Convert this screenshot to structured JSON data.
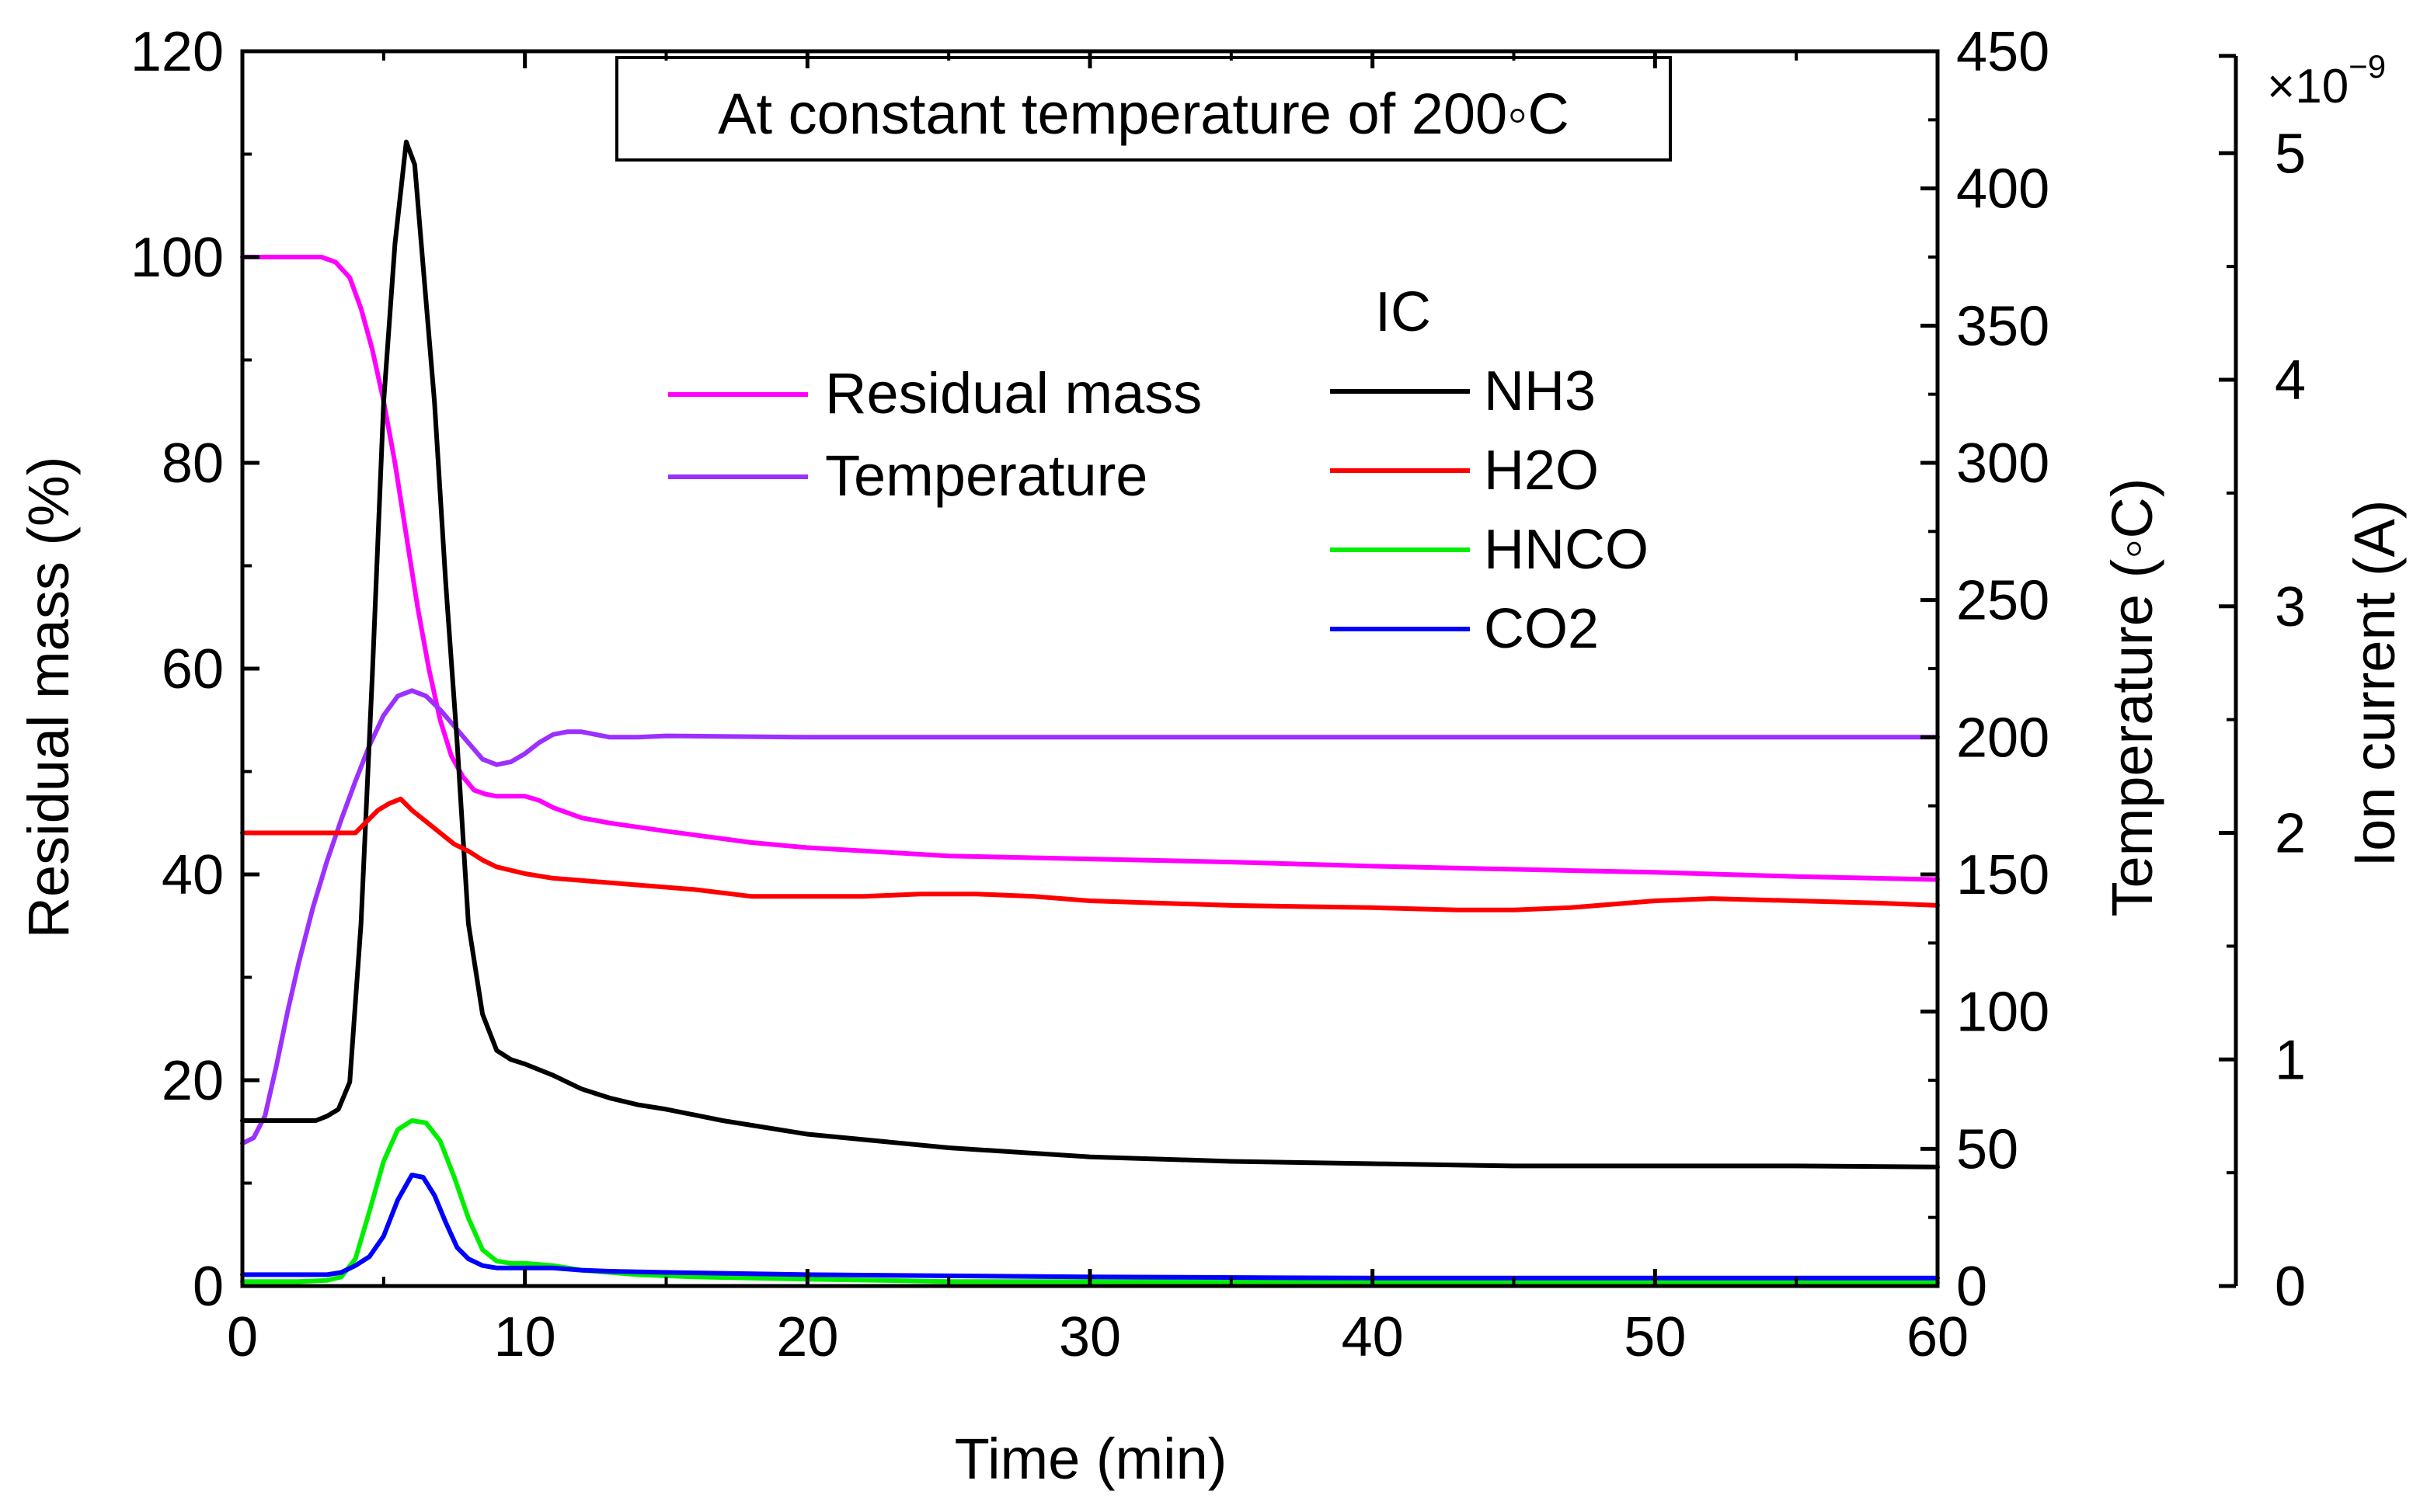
{
  "chart_data": {
    "type": "line",
    "title": "At constant temperature of 200◦C",
    "xlabel": "Time (min)",
    "xlim": [
      0,
      60
    ],
    "x_ticks": [
      0,
      10,
      20,
      30,
      40,
      50,
      60
    ],
    "axes": {
      "left": {
        "label": "Residual mass (%)",
        "lim": [
          0,
          120
        ],
        "ticks": [
          0,
          20,
          40,
          60,
          80,
          100,
          120
        ]
      },
      "right": {
        "label": "Temperature (◦C)",
        "lim": [
          0,
          450
        ],
        "ticks": [
          0,
          50,
          100,
          150,
          200,
          250,
          300,
          350,
          400,
          450
        ]
      },
      "far_right": {
        "label": "Ion current (A)",
        "lim": [
          0,
          5.45
        ],
        "ticks": [
          0,
          1,
          2,
          3,
          4,
          5
        ],
        "multiplier_base": "×10",
        "multiplier_exp": "−9"
      }
    },
    "legend": {
      "position": "top-center",
      "group_title": "IC",
      "entries": [
        "Residual mass",
        "Temperature",
        "NH3",
        "H2O",
        "HNCO",
        "CO2"
      ]
    },
    "series": [
      {
        "name": "Residual mass",
        "axis": "left",
        "color": "#ff00ff",
        "x": [
          0,
          1,
          2,
          2.8,
          3.3,
          3.8,
          4.2,
          4.6,
          5.0,
          5.4,
          5.8,
          6.2,
          6.6,
          7.0,
          7.4,
          7.8,
          8.2,
          8.6,
          9.0,
          9.5,
          10,
          10.5,
          11,
          12,
          13,
          15,
          18,
          20,
          25,
          30,
          35,
          40,
          45,
          50,
          55,
          60
        ],
        "y": [
          100,
          100,
          100,
          100,
          99.5,
          98,
          95,
          91,
          86,
          80,
          73,
          66,
          60,
          55,
          51.5,
          49.5,
          48.2,
          47.8,
          47.6,
          47.6,
          47.6,
          47.2,
          46.5,
          45.5,
          45,
          44.2,
          43.1,
          42.6,
          41.8,
          41.5,
          41.2,
          40.8,
          40.5,
          40.2,
          39.8,
          39.5
        ]
      },
      {
        "name": "Temperature",
        "axis": "right",
        "color": "#9b30ff",
        "x": [
          0,
          0.4,
          0.8,
          1.2,
          1.6,
          2.0,
          2.5,
          3.0,
          3.5,
          4.0,
          4.5,
          5.0,
          5.5,
          6.0,
          6.5,
          7.0,
          7.5,
          8.0,
          8.5,
          9.0,
          9.5,
          10,
          10.5,
          11,
          11.5,
          12,
          13,
          14,
          15,
          20,
          30,
          40,
          50,
          60
        ],
        "y": [
          52,
          54,
          62,
          80,
          100,
          118,
          138,
          155,
          170,
          184,
          197,
          208,
          215,
          217,
          215,
          210,
          204,
          198,
          192,
          190,
          191,
          194,
          198,
          201,
          202,
          202,
          200,
          200,
          200.5,
          200,
          200,
          200,
          200,
          200
        ]
      },
      {
        "name": "NH3",
        "axis": "far_right",
        "color": "#000000",
        "x": [
          0,
          1,
          2,
          2.6,
          3.0,
          3.4,
          3.8,
          4.2,
          4.6,
          5.0,
          5.4,
          5.8,
          6.1,
          6.4,
          6.8,
          7.2,
          7.6,
          8.0,
          8.5,
          9.0,
          9.5,
          10,
          11,
          12,
          13,
          14,
          15,
          17,
          20,
          25,
          30,
          35,
          40,
          45,
          50,
          55,
          60
        ],
        "y": [
          0.73,
          0.73,
          0.73,
          0.73,
          0.75,
          0.78,
          0.9,
          1.6,
          2.7,
          3.9,
          4.6,
          5.05,
          4.95,
          4.5,
          3.9,
          3.1,
          2.4,
          1.6,
          1.2,
          1.04,
          1.0,
          0.98,
          0.93,
          0.87,
          0.83,
          0.8,
          0.78,
          0.73,
          0.67,
          0.61,
          0.57,
          0.55,
          0.54,
          0.53,
          0.53,
          0.53,
          0.525
        ]
      },
      {
        "name": "H2O",
        "axis": "far_right",
        "color": "#ff0000",
        "x": [
          0,
          1,
          2,
          3,
          3.6,
          4.0,
          4.4,
          4.8,
          5.2,
          5.6,
          6.0,
          6.5,
          7.0,
          7.5,
          8.0,
          8.5,
          9.0,
          10,
          11,
          12,
          14,
          16,
          18,
          20,
          22,
          24,
          26,
          28,
          30,
          35,
          40,
          43,
          45,
          47,
          50,
          52,
          55,
          58,
          60
        ],
        "y": [
          2.0,
          2.0,
          2.0,
          2.0,
          2.0,
          2.0,
          2.05,
          2.1,
          2.13,
          2.15,
          2.1,
          2.05,
          2.0,
          1.95,
          1.92,
          1.88,
          1.85,
          1.82,
          1.8,
          1.79,
          1.77,
          1.75,
          1.72,
          1.72,
          1.72,
          1.73,
          1.73,
          1.72,
          1.7,
          1.68,
          1.67,
          1.66,
          1.66,
          1.67,
          1.7,
          1.71,
          1.7,
          1.69,
          1.68
        ]
      },
      {
        "name": "HNCO",
        "axis": "far_right",
        "color": "#00ee00",
        "x": [
          0,
          1,
          2,
          3,
          3.5,
          4.0,
          4.5,
          5.0,
          5.5,
          6.0,
          6.5,
          7.0,
          7.5,
          8.0,
          8.5,
          9.0,
          9.5,
          10,
          11,
          12,
          14,
          16,
          20,
          25,
          30,
          40,
          50,
          60
        ],
        "y": [
          0.02,
          0.02,
          0.02,
          0.025,
          0.04,
          0.12,
          0.33,
          0.55,
          0.69,
          0.73,
          0.72,
          0.64,
          0.48,
          0.3,
          0.16,
          0.11,
          0.1,
          0.1,
          0.09,
          0.07,
          0.05,
          0.04,
          0.03,
          0.02,
          0.02,
          0.015,
          0.015,
          0.015
        ]
      },
      {
        "name": "CO2",
        "axis": "far_right",
        "color": "#0000ff",
        "x": [
          0,
          1,
          2,
          3,
          3.5,
          4.0,
          4.5,
          5.0,
          5.5,
          6.0,
          6.4,
          6.8,
          7.2,
          7.6,
          8.0,
          8.5,
          9.0,
          9.5,
          10,
          11,
          12,
          13,
          15,
          20,
          25,
          30,
          40,
          50,
          60
        ],
        "y": [
          0.05,
          0.05,
          0.05,
          0.05,
          0.06,
          0.09,
          0.13,
          0.22,
          0.38,
          0.49,
          0.48,
          0.4,
          0.28,
          0.17,
          0.12,
          0.09,
          0.08,
          0.08,
          0.08,
          0.08,
          0.07,
          0.065,
          0.06,
          0.05,
          0.045,
          0.04,
          0.035,
          0.035,
          0.035
        ]
      }
    ]
  }
}
